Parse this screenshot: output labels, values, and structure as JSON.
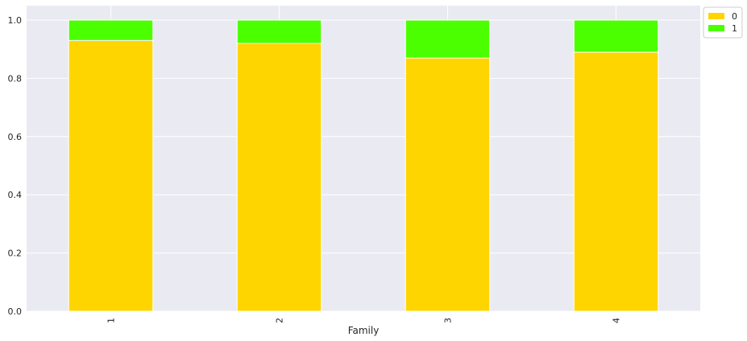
{
  "chart_data": {
    "type": "bar",
    "stacked": true,
    "title": "",
    "xlabel": "Family",
    "ylabel": "",
    "categories": [
      "1",
      "2",
      "3",
      "4"
    ],
    "series": [
      {
        "name": "0",
        "color": "#FFD500",
        "values": [
          0.93,
          0.92,
          0.87,
          0.89
        ]
      },
      {
        "name": "1",
        "color": "#4CFF00",
        "values": [
          0.07,
          0.08,
          0.13,
          0.11
        ]
      }
    ],
    "ylim": [
      0,
      1.0
    ],
    "yticks": [
      "0.0",
      "0.2",
      "0.4",
      "0.6",
      "0.8",
      "1.0"
    ],
    "grid": true,
    "legend_position": "outside-top-right",
    "background": "#EAEAF2"
  }
}
